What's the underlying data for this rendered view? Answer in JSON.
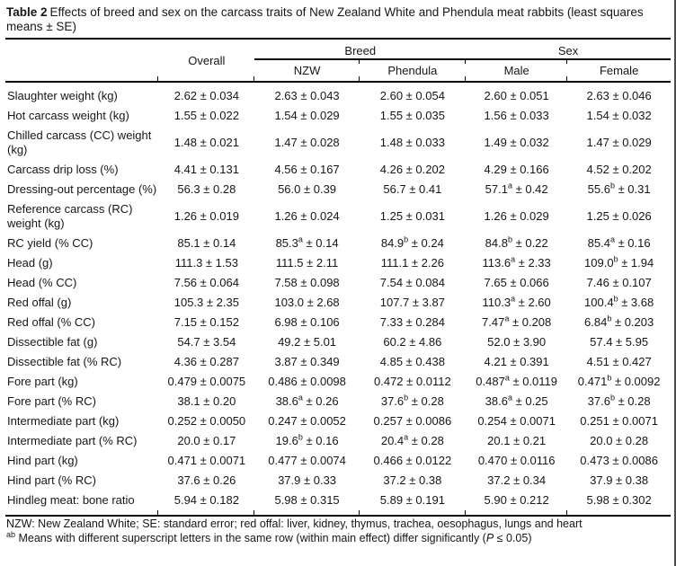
{
  "title": {
    "label": "Table 2",
    "text": "Effects of breed and sex on the carcass traits of New Zealand White and Phendula meat rabbits (least squares means ± SE)"
  },
  "table": {
    "header": {
      "trait_column": "",
      "overall": "Overall",
      "groups": [
        {
          "label": "Breed"
        },
        {
          "label": "Sex"
        }
      ],
      "subcolumns": [
        "NZW",
        "Phendula",
        "Male",
        "Female"
      ]
    },
    "rows": [
      {
        "trait": "Slaughter weight (kg)",
        "values": [
          "2.62 ± 0.034",
          "2.63 ± 0.043",
          "2.60 ± 0.054",
          "2.60 ± 0.051",
          "2.63 ± 0.046"
        ]
      },
      {
        "trait": "Hot carcass weight (kg)",
        "values": [
          "1.55 ± 0.022",
          "1.54 ± 0.029",
          "1.55 ± 0.035",
          "1.56 ± 0.033",
          "1.54 ± 0.032"
        ]
      },
      {
        "trait": "Chilled carcass (CC) weight (kg)",
        "values": [
          "1.48 ± 0.021",
          "1.47 ± 0.028",
          "1.48 ± 0.033",
          "1.49 ± 0.032",
          "1.47 ± 0.029"
        ]
      },
      {
        "trait": "Carcass drip loss (%)",
        "values": [
          "4.41 ± 0.131",
          "4.56 ± 0.167",
          "4.26 ± 0.202",
          "4.29 ± 0.166",
          "4.52 ± 0.202"
        ]
      },
      {
        "trait": "Dressing-out percentage (%)",
        "values": [
          "56.3 ± 0.28",
          "56.0 ± 0.39",
          "56.7 ± 0.41",
          "57.1^a ± 0.42",
          "55.6^b ± 0.31"
        ]
      },
      {
        "trait": "Reference carcass (RC) weight (kg)",
        "values": [
          "1.26 ± 0.019",
          "1.26 ± 0.024",
          "1.25 ± 0.031",
          "1.26 ± 0.029",
          "1.25 ± 0.026"
        ]
      },
      {
        "trait": "RC yield (% CC)",
        "values": [
          "85.1 ± 0.14",
          "85.3^a ± 0.14",
          "84.9^b ± 0.24",
          "84.8^b ± 0.22",
          "85.4^a ± 0.16"
        ]
      },
      {
        "trait": "Head (g)",
        "values": [
          "111.3 ± 1.53",
          "111.5 ± 2.11",
          "111.1 ± 2.26",
          "113.6^a ± 2.33",
          "109.0^b ± 1.94"
        ]
      },
      {
        "trait": "Head (% CC)",
        "values": [
          "7.56 ± 0.064",
          "7.58 ± 0.098",
          "7.54 ± 0.084",
          "7.65 ± 0.066",
          "7.46 ± 0.107"
        ]
      },
      {
        "trait": "Red offal (g)",
        "values": [
          "105.3 ± 2.35",
          "103.0 ± 2.68",
          "107.7 ± 3.87",
          "110.3^a ± 2.60",
          "100.4^b ± 3.68"
        ]
      },
      {
        "trait": "Red offal (% CC)",
        "values": [
          "7.15 ± 0.152",
          "6.98 ± 0.106",
          "7.33 ± 0.284",
          "7.47^a ± 0.208",
          "6.84^b ± 0.203"
        ]
      },
      {
        "trait": "Dissectible fat (g)",
        "values": [
          "54.7 ± 3.54",
          "49.2 ± 5.01",
          "60.2 ± 4.86",
          "52.0 ± 3.90",
          "57.4 ± 5.95"
        ]
      },
      {
        "trait": "Dissectible fat (% RC)",
        "values": [
          "4.36 ± 0.287",
          "3.87 ± 0.349",
          "4.85 ± 0.438",
          "4.21 ± 0.391",
          "4.51 ± 0.427"
        ]
      },
      {
        "trait": "Fore part (kg)",
        "values": [
          "0.479 ± 0.0075",
          "0.486 ± 0.0098",
          "0.472 ± 0.0112",
          "0.487^a ± 0.0119",
          "0.471^b ± 0.0092"
        ]
      },
      {
        "trait": "Fore part (% RC)",
        "values": [
          "38.1 ± 0.20",
          "38.6^a ± 0.26",
          "37.6^b ± 0.28",
          "38.6^a ± 0.25",
          "37.6^b ± 0.28"
        ]
      },
      {
        "trait": "Intermediate part (kg)",
        "values": [
          "0.252 ± 0.0050",
          "0.247 ± 0.0052",
          "0.257 ± 0.0086",
          "0.254 ± 0.0071",
          "0.251 ± 0.0071"
        ]
      },
      {
        "trait": "Intermediate part (% RC)",
        "values": [
          "20.0 ± 0.17",
          "19.6^b ± 0.16",
          "20.4^a ± 0.28",
          "20.1 ± 0.21",
          "20.0 ± 0.28"
        ]
      },
      {
        "trait": "Hind part (kg)",
        "values": [
          "0.471 ± 0.0071",
          "0.477 ± 0.0074",
          "0.466 ± 0.0122",
          "0.470 ± 0.0116",
          "0.473 ± 0.0086"
        ]
      },
      {
        "trait": "Hind part (% RC)",
        "values": [
          "37.6 ± 0.26",
          "37.9 ± 0.33",
          "37.2 ± 0.38",
          "37.2 ± 0.34",
          "37.9 ± 0.38"
        ]
      },
      {
        "trait": "Hindleg meat: bone ratio",
        "values": [
          "5.94 ± 0.182",
          "5.98 ± 0.315",
          "5.89 ± 0.191",
          "5.90 ± 0.212",
          "5.98 ± 0.302"
        ]
      }
    ]
  },
  "footnotes": [
    "NZW: New Zealand White; SE: standard error; red offal: liver, kidney, thymus, trachea, oesophagus, lungs and heart",
    "^ab Means with different superscript letters in the same row (within main effect) differ significantly (*P* ≤ 0.05)"
  ]
}
